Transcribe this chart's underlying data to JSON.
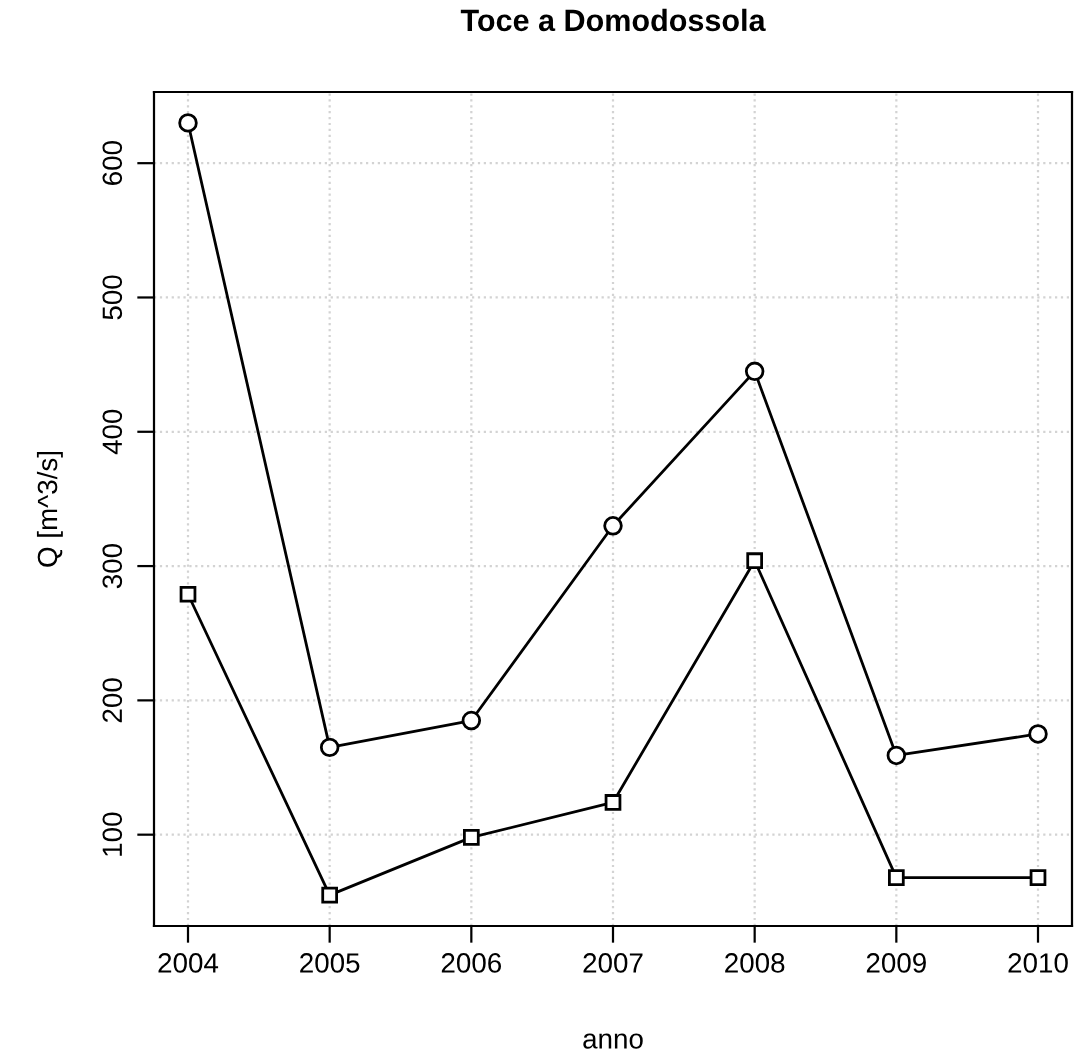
{
  "chart_data": {
    "type": "line",
    "title": "Toce a Domodossola",
    "xlabel": "anno",
    "ylabel": "Q [m^3/s]",
    "x": [
      2004,
      2005,
      2006,
      2007,
      2008,
      2009,
      2010
    ],
    "series": [
      {
        "color": "#000000",
        "marker": "circle",
        "values": [
          630,
          165,
          185,
          330,
          445,
          159,
          175
        ]
      },
      {
        "color": "#000000",
        "marker": "square",
        "values": [
          279,
          55,
          98,
          124,
          304,
          68,
          68
        ]
      }
    ],
    "xlim": [
      2003.76,
      2010.24
    ],
    "ylim": [
      32,
      653
    ],
    "xticks": [
      2004,
      2005,
      2006,
      2007,
      2008,
      2009,
      2010
    ],
    "yticks": [
      100,
      200,
      300,
      400,
      500,
      600
    ],
    "grid": true,
    "line_style": "solid"
  }
}
